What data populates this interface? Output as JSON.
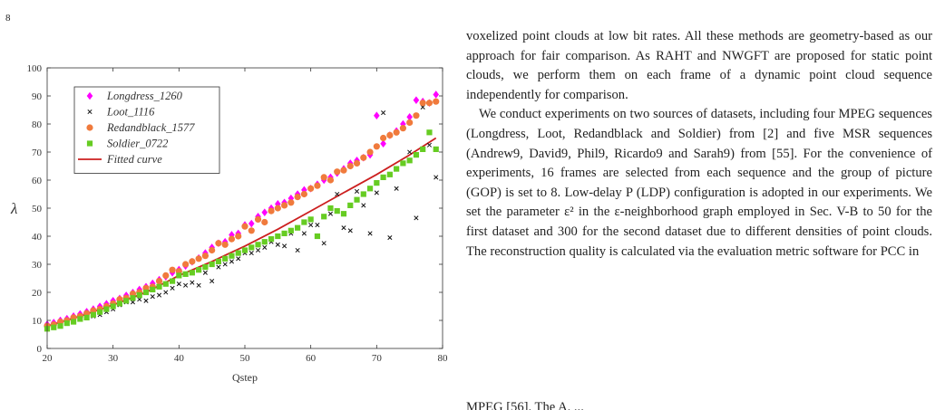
{
  "page": {
    "number": "8"
  },
  "chart_data": {
    "type": "scatter",
    "xlabel": "Qstep",
    "ylabel": "λ",
    "xlim": [
      20,
      80
    ],
    "ylim": [
      0,
      100
    ],
    "xticks": [
      "20",
      "30",
      "40",
      "50",
      "60",
      "70",
      "80"
    ],
    "yticks": [
      "0",
      "10",
      "20",
      "30",
      "40",
      "50",
      "60",
      "70",
      "80",
      "90",
      "100"
    ],
    "grid": false,
    "legend_position": "top-left",
    "series": [
      {
        "name": "Longdress_1260",
        "marker": "diamond",
        "color": "#ff00ff",
        "points": [
          [
            20,
            8.6
          ],
          [
            21,
            9.2
          ],
          [
            22,
            10
          ],
          [
            23,
            10.6
          ],
          [
            24,
            11.5
          ],
          [
            25,
            12.3
          ],
          [
            26,
            13.1
          ],
          [
            27,
            14
          ],
          [
            28,
            15
          ],
          [
            29,
            15.9
          ],
          [
            30,
            17
          ],
          [
            31,
            17.8
          ],
          [
            32,
            18.9
          ],
          [
            33,
            19.9
          ],
          [
            34,
            21
          ],
          [
            35,
            22
          ],
          [
            36,
            23.2
          ],
          [
            37,
            24.5
          ],
          [
            38,
            25.6
          ],
          [
            39,
            27
          ],
          [
            40,
            28.1
          ],
          [
            41,
            29.4
          ],
          [
            42,
            30.9
          ],
          [
            43,
            32.2
          ],
          [
            44,
            34
          ],
          [
            45,
            36
          ],
          [
            46,
            37.5
          ],
          [
            47,
            38
          ],
          [
            48,
            40.5
          ],
          [
            49,
            41
          ],
          [
            50,
            44
          ],
          [
            51,
            44.5
          ],
          [
            52,
            47
          ],
          [
            53,
            48.5
          ],
          [
            54,
            50
          ],
          [
            55,
            51.5
          ],
          [
            56,
            52
          ],
          [
            57,
            53.5
          ],
          [
            58,
            55
          ],
          [
            59,
            56.5
          ],
          [
            60,
            57
          ],
          [
            61,
            58.5
          ],
          [
            62,
            60
          ],
          [
            63,
            61
          ],
          [
            64,
            62.5
          ],
          [
            65,
            64
          ],
          [
            66,
            66
          ],
          [
            67,
            67
          ],
          [
            68,
            68
          ],
          [
            69,
            69
          ],
          [
            70,
            83
          ],
          [
            71,
            73
          ],
          [
            72,
            76
          ],
          [
            73,
            77.5
          ],
          [
            74,
            80
          ],
          [
            75,
            82.5
          ],
          [
            76,
            88.5
          ],
          [
            77,
            88
          ],
          [
            78,
            87.5
          ],
          [
            79,
            90.5
          ]
        ]
      },
      {
        "name": "Loot_1116",
        "marker": "x",
        "color": "#111111",
        "points": [
          [
            20,
            7
          ],
          [
            21,
            8
          ],
          [
            22,
            9
          ],
          [
            23,
            9.5
          ],
          [
            24,
            9.5
          ],
          [
            25,
            11
          ],
          [
            26,
            11
          ],
          [
            27,
            11.5
          ],
          [
            28,
            12
          ],
          [
            29,
            13
          ],
          [
            30,
            14
          ],
          [
            31,
            15.5
          ],
          [
            32,
            16.5
          ],
          [
            33,
            16.5
          ],
          [
            34,
            17.5
          ],
          [
            35,
            17
          ],
          [
            36,
            18.5
          ],
          [
            37,
            19
          ],
          [
            38,
            20
          ],
          [
            39,
            21.5
          ],
          [
            40,
            23
          ],
          [
            41,
            22.5
          ],
          [
            42,
            23.5
          ],
          [
            43,
            22.5
          ],
          [
            44,
            27
          ],
          [
            45,
            24
          ],
          [
            46,
            29
          ],
          [
            47,
            30
          ],
          [
            48,
            31
          ],
          [
            49,
            32
          ],
          [
            50,
            34
          ],
          [
            51,
            34
          ],
          [
            52,
            35
          ],
          [
            53,
            36
          ],
          [
            54,
            38
          ],
          [
            55,
            37
          ],
          [
            56,
            36.5
          ],
          [
            57,
            41
          ],
          [
            58,
            35
          ],
          [
            59,
            41
          ],
          [
            60,
            44
          ],
          [
            61,
            44
          ],
          [
            62,
            37.5
          ],
          [
            63,
            48
          ],
          [
            64,
            55
          ],
          [
            65,
            43
          ],
          [
            66,
            42
          ],
          [
            67,
            56
          ],
          [
            68,
            51
          ],
          [
            69,
            41
          ],
          [
            70,
            55.5
          ],
          [
            71,
            84
          ],
          [
            72,
            39.5
          ],
          [
            73,
            57
          ],
          [
            74,
            66
          ],
          [
            75,
            70
          ],
          [
            76,
            46.5
          ],
          [
            77,
            86
          ],
          [
            78,
            72.5
          ],
          [
            79,
            61
          ]
        ]
      },
      {
        "name": "Redandblack_1577",
        "marker": "circle",
        "color": "#f07a3c",
        "points": [
          [
            20,
            8
          ],
          [
            21,
            8.5
          ],
          [
            22,
            9.5
          ],
          [
            23,
            10
          ],
          [
            24,
            11
          ],
          [
            25,
            11.5
          ],
          [
            26,
            12.5
          ],
          [
            27,
            13.5
          ],
          [
            28,
            14
          ],
          [
            29,
            15
          ],
          [
            30,
            16
          ],
          [
            31,
            17.5
          ],
          [
            32,
            18
          ],
          [
            33,
            19.5
          ],
          [
            34,
            20
          ],
          [
            35,
            21.5
          ],
          [
            36,
            22
          ],
          [
            37,
            24
          ],
          [
            38,
            26
          ],
          [
            39,
            28
          ],
          [
            40,
            27.5
          ],
          [
            41,
            30
          ],
          [
            42,
            31
          ],
          [
            43,
            32
          ],
          [
            44,
            33
          ],
          [
            45,
            35
          ],
          [
            46,
            37.5
          ],
          [
            47,
            37
          ],
          [
            48,
            39
          ],
          [
            49,
            40
          ],
          [
            50,
            43.5
          ],
          [
            51,
            42
          ],
          [
            52,
            46
          ],
          [
            53,
            45
          ],
          [
            54,
            49
          ],
          [
            55,
            50
          ],
          [
            56,
            51
          ],
          [
            57,
            52
          ],
          [
            58,
            54
          ],
          [
            59,
            55
          ],
          [
            60,
            57
          ],
          [
            61,
            58
          ],
          [
            62,
            61
          ],
          [
            63,
            60
          ],
          [
            64,
            63
          ],
          [
            65,
            63.5
          ],
          [
            66,
            65
          ],
          [
            67,
            66
          ],
          [
            68,
            68
          ],
          [
            69,
            70
          ],
          [
            70,
            72
          ],
          [
            71,
            75
          ],
          [
            72,
            76
          ],
          [
            73,
            77
          ],
          [
            74,
            78.5
          ],
          [
            75,
            80.5
          ],
          [
            76,
            83
          ],
          [
            77,
            87.5
          ],
          [
            78,
            87.5
          ],
          [
            79,
            88
          ]
        ]
      },
      {
        "name": "Soldier_0722",
        "marker": "square",
        "color": "#66cc22",
        "points": [
          [
            20,
            7
          ],
          [
            21,
            7.5
          ],
          [
            22,
            8
          ],
          [
            23,
            9
          ],
          [
            24,
            9.5
          ],
          [
            25,
            10.5
          ],
          [
            26,
            11
          ],
          [
            27,
            12
          ],
          [
            28,
            13
          ],
          [
            29,
            14
          ],
          [
            30,
            15
          ],
          [
            31,
            16
          ],
          [
            32,
            17
          ],
          [
            33,
            18
          ],
          [
            34,
            19
          ],
          [
            35,
            20
          ],
          [
            36,
            21
          ],
          [
            37,
            22
          ],
          [
            38,
            23
          ],
          [
            39,
            24
          ],
          [
            40,
            26
          ],
          [
            41,
            26.5
          ],
          [
            42,
            27
          ],
          [
            43,
            28
          ],
          [
            44,
            29
          ],
          [
            45,
            30
          ],
          [
            46,
            31
          ],
          [
            47,
            32
          ],
          [
            48,
            33
          ],
          [
            49,
            34
          ],
          [
            50,
            35
          ],
          [
            51,
            36
          ],
          [
            52,
            37
          ],
          [
            53,
            38
          ],
          [
            54,
            39
          ],
          [
            55,
            40
          ],
          [
            56,
            41
          ],
          [
            57,
            42
          ],
          [
            58,
            43
          ],
          [
            59,
            45
          ],
          [
            60,
            46
          ],
          [
            61,
            40
          ],
          [
            62,
            47
          ],
          [
            63,
            50
          ],
          [
            64,
            49
          ],
          [
            65,
            48
          ],
          [
            66,
            51
          ],
          [
            67,
            53
          ],
          [
            68,
            55
          ],
          [
            69,
            57
          ],
          [
            70,
            59
          ],
          [
            71,
            61
          ],
          [
            72,
            62
          ],
          [
            73,
            64
          ],
          [
            74,
            66
          ],
          [
            75,
            67
          ],
          [
            76,
            69
          ],
          [
            77,
            71
          ],
          [
            78,
            77
          ],
          [
            79,
            71
          ]
        ]
      },
      {
        "name": "Fitted curve",
        "marker": "line",
        "color": "#cc1f1f",
        "points": [
          [
            20,
            8
          ],
          [
            25,
            11.5
          ],
          [
            30,
            15.5
          ],
          [
            35,
            20
          ],
          [
            40,
            26
          ],
          [
            45,
            31
          ],
          [
            50,
            36.5
          ],
          [
            55,
            42.5
          ],
          [
            60,
            49
          ],
          [
            65,
            55.5
          ],
          [
            70,
            62
          ],
          [
            75,
            69
          ],
          [
            79,
            75
          ]
        ]
      }
    ]
  },
  "body_text": {
    "p1": "voxelized point clouds at low bit rates. All these methods are geometry-based as our approach for fair comparison. As RAHT and NWGFT are proposed for static point clouds, we perform them on each frame of a dynamic point cloud sequence independently for comparison.",
    "p2": "We conduct experiments on two sources of datasets, including four MPEG sequences (Longdress, Loot, Redandblack and Soldier) from [2] and five MSR sequences (Andrew9, David9, Phil9, Ricardo9 and Sarah9) from [55]. For the convenience of experiments, 16 frames are selected from each sequence and the group of picture (GOP) is set to 8. Low-delay P (LDP) configuration is adopted in our experiments. We set the parameter ε² in the ε-neighborhood graph employed in Sec. V-B to 50 for the first dataset and 300 for the second dataset due to different densities of point clouds. The reconstruction quality is calculated via the evaluation metric software for PCC in",
    "cut_line": "MPEG [56]. The A. ..."
  }
}
